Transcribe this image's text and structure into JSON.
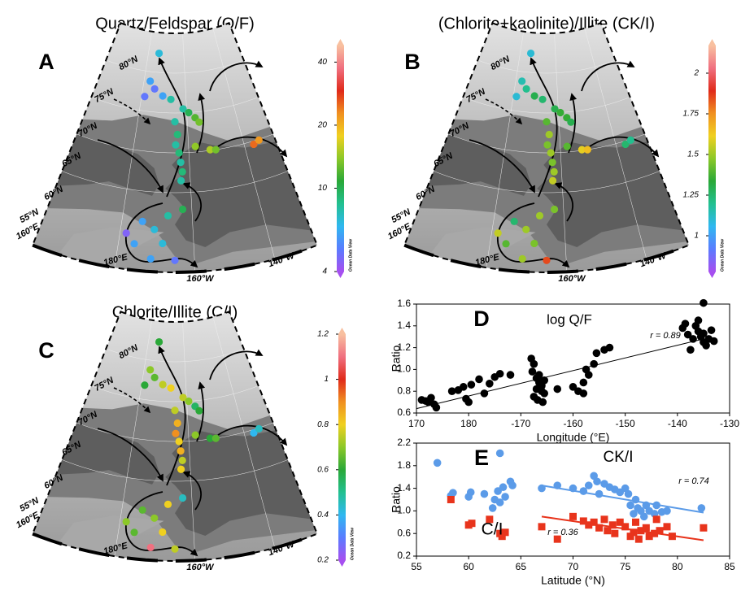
{
  "chart_data": [
    {
      "type": "scatter",
      "panel": "D",
      "annotation": "log Q/F",
      "xlabel": "Longitude (°E)",
      "ylabel": "Ratio",
      "xlim": [
        170,
        -130
      ],
      "xticks": [
        170,
        180,
        -170,
        -160,
        -150,
        -140,
        -130
      ],
      "ylim": [
        0.6,
        1.6
      ],
      "yticks": [
        0.6,
        0.8,
        {
          "value": 1,
          "label": "1.0"
        },
        1.2,
        1.4,
        1.6
      ],
      "series": [
        {
          "color": "#000000",
          "marker": "circle",
          "x": [
            171,
            171.8,
            172.8,
            173.4,
            173.8,
            172.3,
            176.8,
            178,
            179,
            179.5,
            180,
            -179.5,
            -178,
            -177,
            -176,
            -175,
            -174,
            -172,
            -168,
            -167.5,
            -167.8,
            -167,
            -166.5,
            -166,
            -167,
            -166,
            -165.5,
            -167.5,
            -166.8,
            -165.8,
            -166.5,
            -165.5,
            -163,
            -160,
            -159,
            -158,
            -157,
            -156,
            -155.5,
            -157.5,
            -154,
            -153,
            -158,
            -139,
            -138.5,
            -138,
            -137,
            -136.5,
            -136,
            -135.5,
            -135,
            -135,
            -134.5,
            -134,
            -133.5,
            -133,
            -137.5,
            -136,
            -135
          ],
          "values": [
            0.72,
            0.71,
            0.74,
            0.68,
            0.65,
            0.7,
            0.8,
            0.81,
            0.84,
            0.73,
            0.7,
            0.86,
            0.91,
            0.78,
            0.87,
            0.93,
            0.96,
            0.95,
            1.1,
            1.05,
            0.98,
            0.92,
            0.88,
            0.85,
            0.82,
            0.8,
            0.78,
            0.75,
            0.72,
            0.7,
            0.95,
            0.9,
            0.82,
            0.84,
            0.8,
            0.88,
            0.95,
            1.05,
            1.15,
            1,
            1.18,
            1.2,
            0.78,
            1.38,
            1.42,
            1.32,
            1.28,
            1.4,
            1.35,
            1.3,
            1.33,
            1.61,
            1.22,
            1.28,
            1.36,
            1.26,
            1.18,
            1.45,
            1.25
          ],
          "trend": {
            "x": [
              170,
              -135
            ],
            "values": [
              0.64,
              1.28
            ]
          },
          "r_label": "r = 0.89"
        }
      ]
    },
    {
      "type": "scatter",
      "panel": "E",
      "xlabel": "Latitude (°N)",
      "ylabel": "Ratio",
      "xlim": [
        55,
        85
      ],
      "xticks": [
        55,
        60,
        65,
        70,
        75,
        80,
        85
      ],
      "ylim": [
        0.2,
        2.2
      ],
      "yticks": [
        0.2,
        0.6,
        {
          "value": 1,
          "label": "1.0"
        },
        1.4,
        1.8,
        2.2
      ],
      "series": [
        {
          "name": "CK/I",
          "color": "#5b9be8",
          "marker": "circle",
          "x": [
            57,
            58.3,
            58.5,
            60,
            60.2,
            61.5,
            62.5,
            62.8,
            63,
            63.3,
            63.5,
            63,
            64,
            64.2,
            62.3,
            67,
            68.5,
            70,
            71,
            71.5,
            72,
            72.3,
            72.5,
            73,
            73.5,
            74,
            74.5,
            75,
            75.3,
            75.5,
            76,
            76.2,
            76.5,
            77,
            77.3,
            77.8,
            78,
            78.5,
            79,
            76.8,
            75.8,
            82.3
          ],
          "values": [
            1.85,
            1.27,
            1.32,
            1.25,
            1.33,
            1.3,
            1.2,
            1.35,
            2.02,
            1.42,
            1.25,
            1.15,
            1.52,
            1.45,
            1.05,
            1.4,
            1.45,
            1.4,
            1.35,
            1.45,
            1.62,
            1.52,
            1.3,
            1.48,
            1.42,
            1.38,
            1.33,
            1.4,
            1.3,
            1.1,
            1.2,
            1.05,
            1,
            1.1,
            1,
            0.95,
            1.1,
            0.98,
            1,
            0.9,
            0.95,
            1.05
          ],
          "trend": {
            "x": [
              67,
              82.5
            ],
            "values": [
              1.45,
              0.97
            ]
          },
          "r_label": "r = 0.74"
        },
        {
          "name": "C/I",
          "color": "#e8341c",
          "marker": "square",
          "x": [
            58.3,
            60,
            60.3,
            62,
            63,
            63.2,
            63.5,
            67,
            68.5,
            70,
            71,
            71.5,
            72,
            72.5,
            73,
            73.3,
            73.8,
            74,
            74.5,
            75,
            75.5,
            75.8,
            76,
            76.3,
            76.5,
            77,
            77.3,
            77.8,
            78,
            78.3,
            79,
            79.5,
            82.5
          ],
          "values": [
            1.2,
            0.75,
            0.78,
            0.85,
            0.6,
            0.55,
            0.62,
            0.72,
            0.5,
            0.9,
            0.82,
            0.75,
            0.8,
            0.7,
            0.85,
            0.65,
            0.75,
            0.6,
            0.8,
            0.72,
            0.55,
            0.62,
            0.8,
            0.5,
            0.65,
            0.7,
            0.55,
            0.6,
            0.85,
            0.65,
            0.72,
            0.55,
            0.7
          ],
          "trend": {
            "x": [
              67,
              82.5
            ],
            "values": [
              0.9,
              0.48
            ]
          },
          "r_label": "r = 0.36"
        }
      ]
    }
  ],
  "maps": [
    {
      "panel": "A",
      "title": "Quartz/Feldspar (Q/F)",
      "log": true,
      "colorlim": [
        4,
        48
      ],
      "colorbar_ticks": [
        4,
        10,
        20,
        40
      ],
      "values": [
        7,
        6,
        5,
        6,
        8,
        5,
        8,
        12,
        8,
        9,
        8,
        9,
        8,
        9,
        8,
        14,
        15,
        13,
        25,
        22,
        13,
        8,
        10,
        6,
        7,
        4.5,
        6,
        7,
        6,
        5,
        10
      ]
    },
    {
      "panel": "B",
      "title": "(Chlorite+kaolinite)/Illite (CK/I)",
      "log": false,
      "colorlim": [
        0.78,
        2.17
      ],
      "colorbar_ticks": [
        1,
        1.25,
        1.5,
        1.75,
        2
      ],
      "values": [
        1.1,
        1.15,
        1.2,
        1.3,
        1.25,
        1.1,
        1.3,
        1.35,
        1.4,
        1.5,
        1.45,
        1.5,
        1.45,
        1.5,
        1.55,
        1.4,
        1.6,
        1.65,
        1.25,
        1.2,
        1.3,
        1.5,
        1.45,
        1.25,
        1.5,
        1.55,
        1.4,
        1.45,
        1.5,
        1.85,
        1.35
      ]
    },
    {
      "panel": "C",
      "title": "Chlorite/Illite (C/I)",
      "log": false,
      "colorlim": [
        0.2,
        1.2
      ],
      "colorbar_ticks": [
        0.2,
        0.4,
        0.6,
        0.8,
        1,
        1.2
      ],
      "values": [
        0.6,
        0.7,
        0.65,
        0.75,
        0.8,
        0.6,
        0.75,
        0.55,
        0.75,
        0.85,
        0.9,
        0.8,
        0.85,
        0.75,
        0.8,
        0.7,
        0.6,
        0.65,
        0.4,
        0.45,
        0.6,
        0.8,
        0.45,
        0.65,
        0.7,
        0.7,
        0.65,
        0.8,
        1.1,
        0.75,
        0.7
      ]
    }
  ],
  "stations": {
    "lon": [
      -174,
      -177,
      -174.5,
      -170.5,
      -166.8,
      -178.6,
      -161.5,
      -156.7,
      -165,
      -164,
      -164.7,
      -163.5,
      -163,
      -162.5,
      -163,
      -157.5,
      -152.3,
      -150.3,
      -136.7,
      -134.5,
      -155.2,
      -167,
      -162.7,
      -174.2,
      -170.7,
      -178.3,
      -175.8,
      -168.3,
      -171.2,
      -165,
      -159.2
    ],
    "lat": [
      82.4,
      78.8,
      77.9,
      77.1,
      76.7,
      76.8,
      75.5,
      74.3,
      73.9,
      72.3,
      71,
      70,
      68.8,
      67.6,
      66.5,
      70.7,
      70.1,
      70,
      69.6,
      69.9,
      73.7,
      62.1,
      62.9,
      61.2,
      60.3,
      59.5,
      58.3,
      58.6,
      56.6,
      56.5,
      75
    ]
  },
  "map_labels": {
    "lat": [
      "80°N",
      "75°N",
      "70°N",
      "65°N",
      "60°N",
      "55°N"
    ],
    "lon": [
      "160°E",
      "180°E",
      "160°W",
      "140°W"
    ]
  },
  "colormap": [
    "#a64ff0",
    "#5a7cff",
    "#2fb8f0",
    "#22c090",
    "#2aa838",
    "#8cc828",
    "#f0d020",
    "#f09020",
    "#e02a1a",
    "#f07080",
    "#f8c0a0"
  ],
  "watermark": "Ocean Data View"
}
